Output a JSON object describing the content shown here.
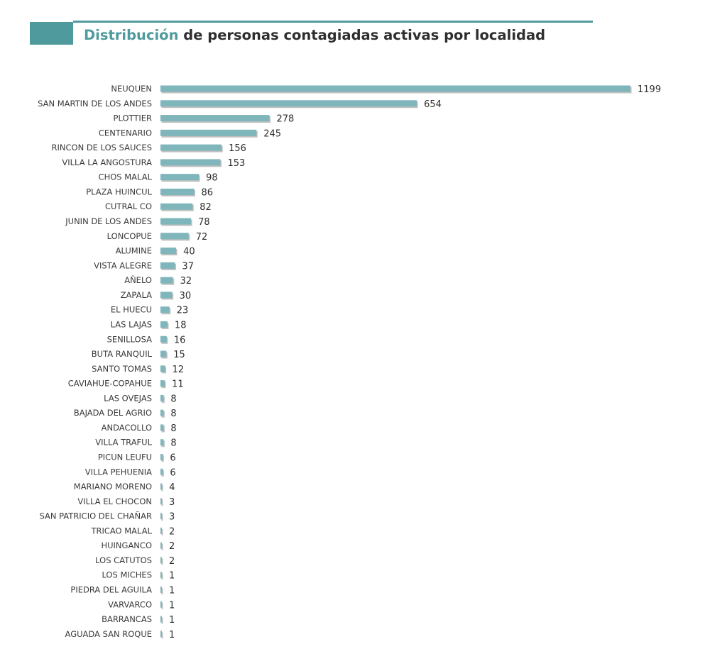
{
  "title": {
    "accent": "Distribución",
    "rest": " de personas contagiadas activas por localidad"
  },
  "colors": {
    "accent": "#4f9a9c",
    "bar": "#7fb6bb",
    "bar_shadow": "#8a8a8a",
    "text": "#2e2e2e"
  },
  "chart_data": {
    "type": "bar",
    "orientation": "horizontal",
    "title": "Distribución de personas contagiadas activas por localidad",
    "xlabel": "",
    "ylabel": "",
    "grid": false,
    "xlim": [
      0,
      1199
    ],
    "categories": [
      "NEUQUEN",
      "SAN MARTIN DE LOS ANDES",
      "PLOTTIER",
      "CENTENARIO",
      "RINCON DE LOS SAUCES",
      "VILLA LA ANGOSTURA",
      "CHOS MALAL",
      "PLAZA HUINCUL",
      "CUTRAL CO",
      "JUNIN DE LOS ANDES",
      "LONCOPUE",
      "ALUMINE",
      "VISTA ALEGRE",
      "AÑELO",
      "ZAPALA",
      "EL HUECU",
      "LAS LAJAS",
      "SENILLOSA",
      "BUTA RANQUIL",
      "SANTO TOMAS",
      "CAVIAHUE-COPAHUE",
      "LAS OVEJAS",
      "BAJADA DEL AGRIO",
      "ANDACOLLO",
      "VILLA TRAFUL",
      "PICUN LEUFU",
      "VILLA PEHUENIA",
      "MARIANO MORENO",
      "VILLA EL CHOCON",
      "SAN PATRICIO DEL CHAÑAR",
      "TRICAO MALAL",
      "HUINGANCO",
      "LOS CATUTOS",
      "LOS MICHES",
      "PIEDRA DEL AGUILA",
      "VARVARCO",
      "BARRANCAS",
      "AGUADA SAN ROQUE"
    ],
    "values": [
      1199,
      654,
      278,
      245,
      156,
      153,
      98,
      86,
      82,
      78,
      72,
      40,
      37,
      32,
      30,
      23,
      18,
      16,
      15,
      12,
      11,
      8,
      8,
      8,
      8,
      6,
      6,
      4,
      3,
      3,
      2,
      2,
      2,
      1,
      1,
      1,
      1,
      1
    ]
  }
}
